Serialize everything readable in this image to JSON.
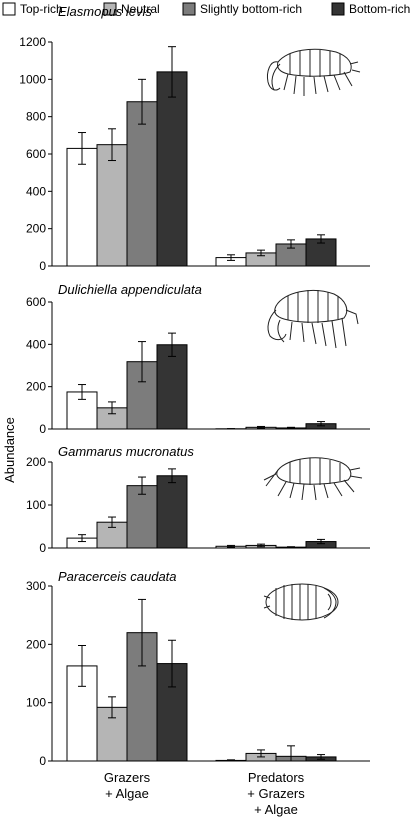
{
  "chart_data": {
    "type": "bar",
    "ylabel": "Abundance",
    "categories": [
      "Grazers\n+ Algae",
      "Predators\n+ Grazers\n+ Algae"
    ],
    "legend": {
      "position": "top",
      "entries": [
        {
          "name": "Top-rich",
          "color": "#ffffff"
        },
        {
          "name": "Neutral",
          "color": "#b5b5b5"
        },
        {
          "name": "Slightly bottom-rich",
          "color": "#7c7c7c"
        },
        {
          "name": "Bottom-rich",
          "color": "#343434"
        }
      ]
    },
    "panels": [
      {
        "title": "Elasmopus levis",
        "ylim": [
          0,
          1200
        ],
        "yticks": [
          0,
          200,
          400,
          600,
          800,
          1000,
          1200
        ],
        "series": [
          {
            "name": "Top-rich",
            "values": [
              630,
              45
            ],
            "errors": [
              85,
              15
            ]
          },
          {
            "name": "Neutral",
            "values": [
              650,
              70
            ],
            "errors": [
              85,
              15
            ]
          },
          {
            "name": "Slightly bottom-rich",
            "values": [
              880,
              118
            ],
            "errors": [
              120,
              22
            ]
          },
          {
            "name": "Bottom-rich",
            "values": [
              1040,
              145
            ],
            "errors": [
              135,
              22
            ]
          }
        ]
      },
      {
        "title": "Dulichiella appendiculata",
        "ylim": [
          0,
          600
        ],
        "yticks": [
          0,
          200,
          400,
          600
        ],
        "series": [
          {
            "name": "Top-rich",
            "values": [
              175,
              1
            ],
            "errors": [
              35,
              1
            ]
          },
          {
            "name": "Neutral",
            "values": [
              100,
              8
            ],
            "errors": [
              28,
              4
            ]
          },
          {
            "name": "Slightly bottom-rich",
            "values": [
              318,
              5
            ],
            "errors": [
              95,
              3
            ]
          },
          {
            "name": "Bottom-rich",
            "values": [
              398,
              25
            ],
            "errors": [
              55,
              10
            ]
          }
        ]
      },
      {
        "title": "Gammarus mucronatus",
        "ylim": [
          0,
          200
        ],
        "yticks": [
          0,
          100,
          200
        ],
        "series": [
          {
            "name": "Top-rich",
            "values": [
              23,
              4
            ],
            "errors": [
              8,
              2
            ]
          },
          {
            "name": "Neutral",
            "values": [
              60,
              6
            ],
            "errors": [
              12,
              3
            ]
          },
          {
            "name": "Slightly bottom-rich",
            "values": [
              145,
              2
            ],
            "errors": [
              20,
              1
            ]
          },
          {
            "name": "Bottom-rich",
            "values": [
              168,
              15
            ],
            "errors": [
              16,
              5
            ]
          }
        ]
      },
      {
        "title": "Paracerceis caudata",
        "ylim": [
          0,
          300
        ],
        "yticks": [
          0,
          100,
          200,
          300
        ],
        "series": [
          {
            "name": "Top-rich",
            "values": [
              163,
              1
            ],
            "errors": [
              35,
              1
            ]
          },
          {
            "name": "Neutral",
            "values": [
              92,
              13
            ],
            "errors": [
              18,
              6
            ]
          },
          {
            "name": "Slightly bottom-rich",
            "values": [
              220,
              8
            ],
            "errors": [
              57,
              18
            ]
          },
          {
            "name": "Bottom-rich",
            "values": [
              167,
              7
            ],
            "errors": [
              40,
              4
            ]
          }
        ]
      }
    ]
  },
  "icons": [
    "amphipod-elasmopus-illustration",
    "amphipod-dulichiella-illustration",
    "amphipod-gammarus-illustration",
    "isopod-paracerceis-illustration"
  ]
}
